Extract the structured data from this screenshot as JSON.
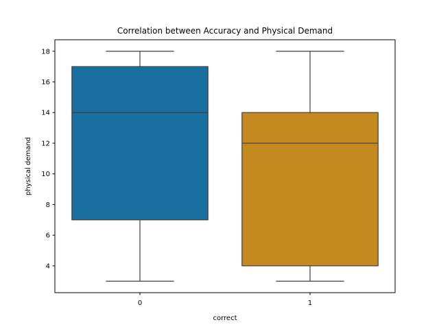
{
  "chart_data": {
    "type": "box",
    "title": "Correlation between Accuracy and Physical Demand",
    "xlabel": "correct",
    "ylabel": "physical demand",
    "categories": [
      "0",
      "1"
    ],
    "ylim": [
      2.25,
      18.75
    ],
    "yticks": [
      4,
      6,
      8,
      10,
      12,
      14,
      16,
      18
    ],
    "ytick_labels": [
      "4",
      "6",
      "8",
      "10",
      "12",
      "14",
      "16",
      "18"
    ],
    "grid": false,
    "legend": "none",
    "boxes": [
      {
        "category": "0",
        "whisker_low": 3,
        "q1": 7,
        "median": 14,
        "q3": 17,
        "whisker_high": 18,
        "color": "#1a6fa1"
      },
      {
        "category": "1",
        "whisker_low": 3,
        "q1": 4,
        "median": 12,
        "q3": 14,
        "whisker_high": 18,
        "color": "#c48a20"
      }
    ]
  }
}
